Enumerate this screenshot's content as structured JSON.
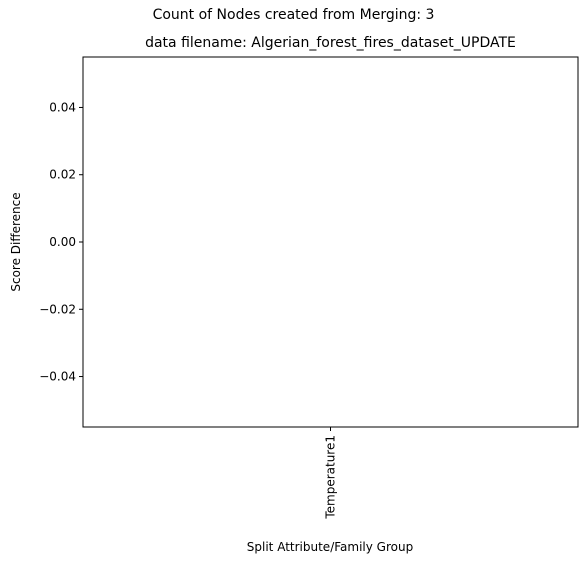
{
  "figure": {
    "suptitle": "Count of Nodes created from Merging: 3"
  },
  "chart_data": {
    "type": "bar",
    "title": "data filename: Algerian_forest_fires_dataset_UPDATE",
    "xlabel": "Split Attribute/Family Group",
    "ylabel": "Score Difference",
    "categories": [
      "Temperature1"
    ],
    "values": [
      0
    ],
    "ylim": [
      -0.055,
      0.055
    ],
    "yticks": [
      0.04,
      0.02,
      0.0,
      -0.02,
      -0.04
    ],
    "ytick_labels": [
      "0.04",
      "0.02",
      "0.00",
      "−0.02",
      "−0.04"
    ],
    "grid": false,
    "legend": false
  }
}
